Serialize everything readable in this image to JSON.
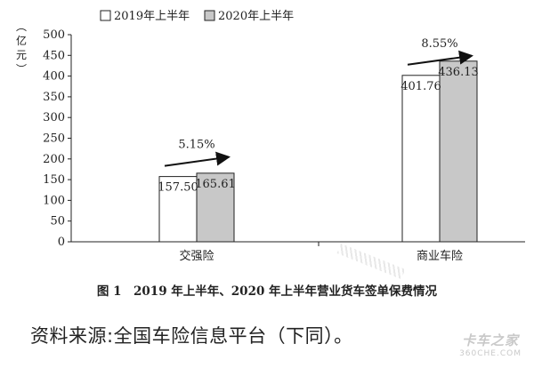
{
  "chart_data": {
    "type": "bar",
    "categories": [
      "交强险",
      "商业车险"
    ],
    "series": [
      {
        "name": "2019年上半年",
        "values": [
          157.5,
          401.76
        ],
        "color": "#ffffff"
      },
      {
        "name": "2020年上半年",
        "values": [
          165.61,
          436.13
        ],
        "color": "#c8c8c8"
      }
    ],
    "value_labels": [
      [
        "157.50",
        "165.61"
      ],
      [
        "401.76",
        "436.13"
      ]
    ],
    "growth": [
      "5.15%",
      "8.55%"
    ],
    "ylabel": "亿元",
    "ylim": [
      0,
      500
    ],
    "yticks": [
      0,
      50,
      100,
      150,
      200,
      250,
      300,
      350,
      400,
      450,
      500
    ],
    "legend_position": "top-left",
    "grid": false
  },
  "caption": "图 1　2019 年上半年、2020 年上半年营业货车签单保费情况",
  "source": "资料来源:全国车险信息平台（下同）。",
  "watermark": {
    "line1": "卡车之家",
    "line2": "360CHE.COM"
  }
}
